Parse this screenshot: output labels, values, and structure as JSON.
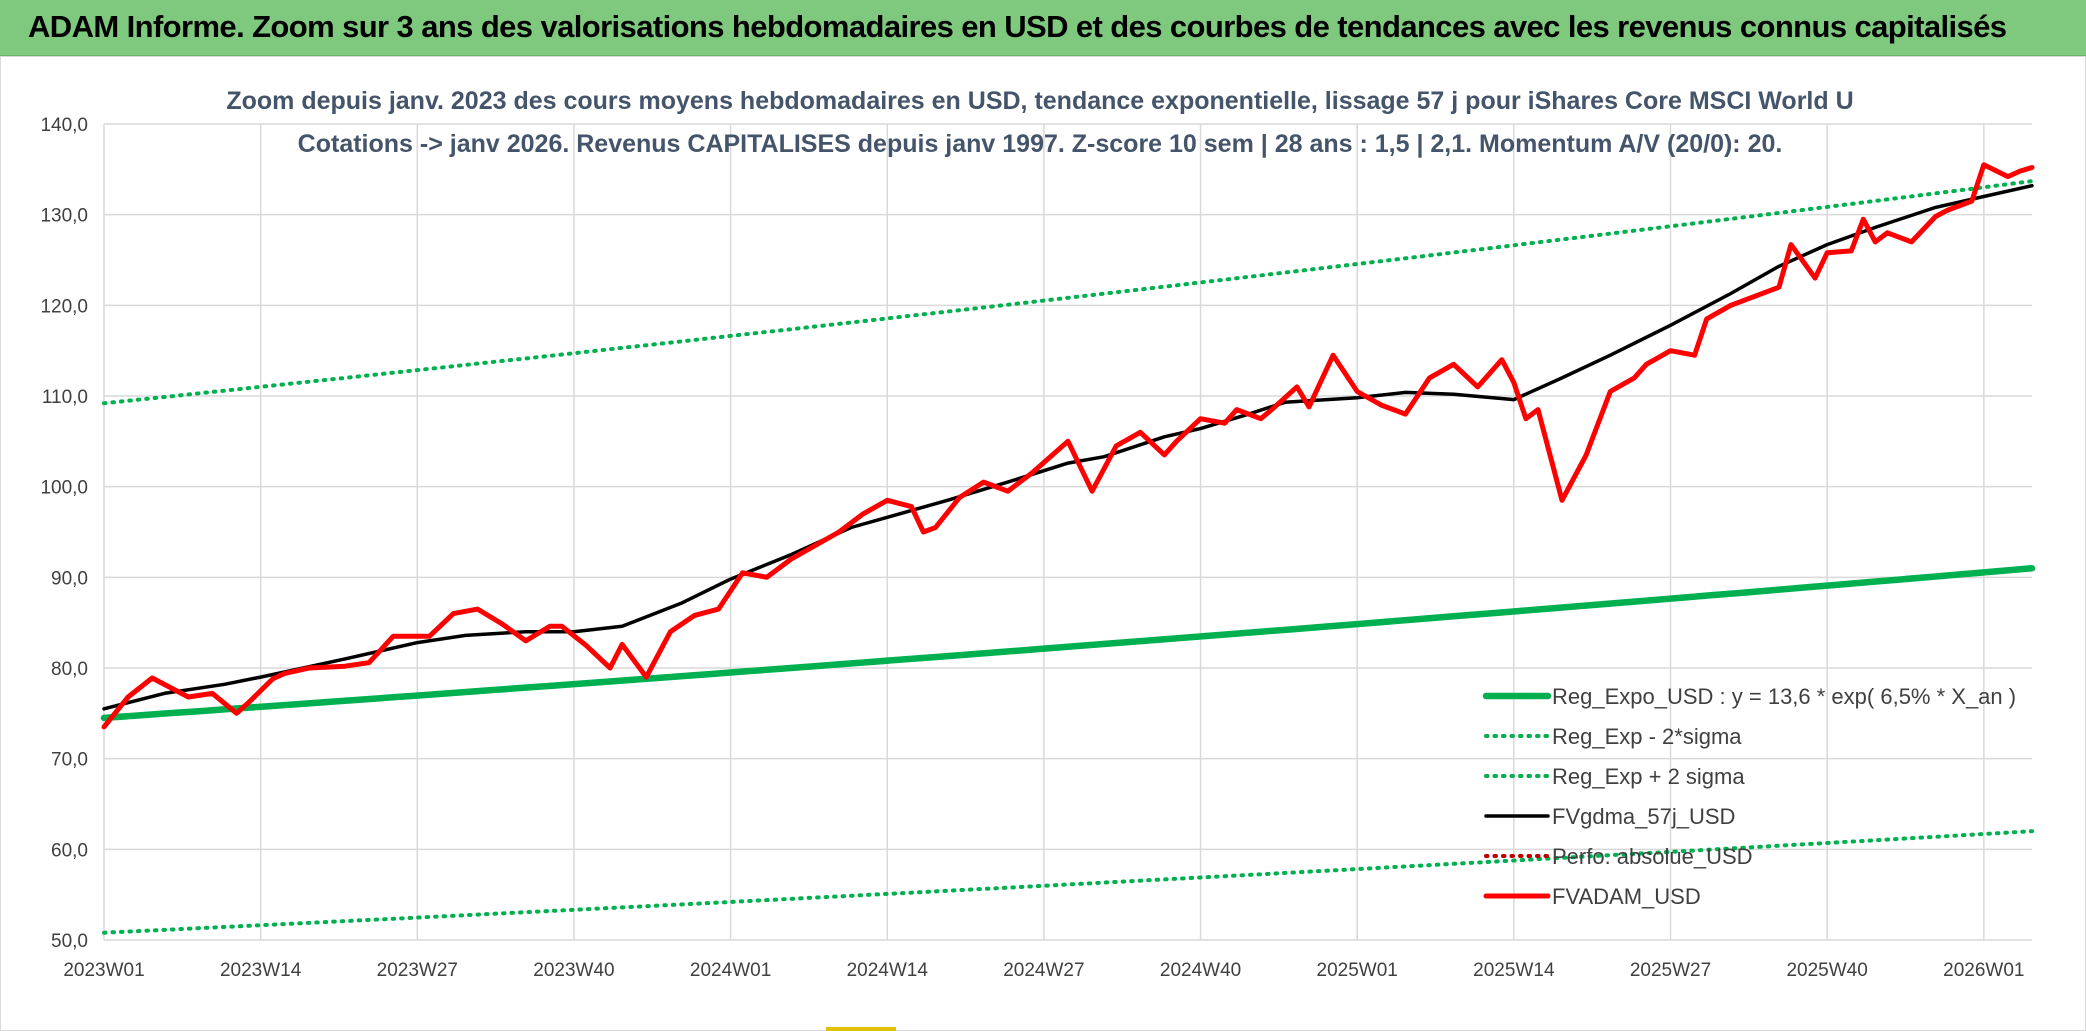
{
  "header": {
    "title": "ADAM Informe. Zoom sur 3 ans des valorisations hebdomadaires en USD et des courbes de tendances avec les revenus connus capitalisés"
  },
  "colors": {
    "header_bg": "#7fc97f",
    "regression": "#00b050",
    "moving_average": "#000000",
    "fvadam": "#ff0000",
    "perfo_absolue": "#c00000",
    "title_text": "#44546a",
    "grid": "#d9d9d9"
  },
  "chart_data": {
    "type": "line",
    "title_lines": [
      "Zoom depuis janv. 2023 des cours moyens hebdomadaires en USD, tendance exponentielle, lissage 57 j pour iShares Core MSCI World U",
      "Cotations -> janv 2026. Revenus CAPITALISES depuis janv 1997. Z-score 10 sem | 28 ans : 1,5 | 2,1. Momentum A/V (20/0): 20."
    ],
    "xlabel": "",
    "ylabel": "",
    "ylim": [
      50,
      140
    ],
    "y_ticks": [
      "50,0",
      "60,0",
      "70,0",
      "80,0",
      "90,0",
      "100,0",
      "110,0",
      "120,0",
      "130,0",
      "140,0"
    ],
    "x_tick_labels": [
      "2023W01",
      "2023W14",
      "2023W27",
      "2023W40",
      "2024W01",
      "2024W14",
      "2024W27",
      "2024W40",
      "2025W01",
      "2025W14",
      "2025W27",
      "2025W40",
      "2026W01"
    ],
    "x_tick_index": [
      0,
      13,
      26,
      39,
      52,
      65,
      78,
      91,
      104,
      117,
      130,
      143,
      156
    ],
    "x_max_index": 160,
    "grid": true,
    "legend_position": "bottom-right",
    "series": [
      {
        "name": "Reg_Expo_USD : y = 13,6 * exp( 6,5% *  X_an )",
        "style": "solid-thick",
        "color": "#00b050",
        "x": [
          0,
          160
        ],
        "values": [
          74.5,
          91.0
        ],
        "interpolation": "exponential"
      },
      {
        "name": "Reg_Exp - 2*sigma",
        "style": "dotted",
        "color": "#00b050",
        "x": [
          0,
          160
        ],
        "values": [
          50.8,
          62.0
        ],
        "interpolation": "exponential"
      },
      {
        "name": "Reg_Exp + 2 sigma",
        "style": "dotted",
        "color": "#00b050",
        "x": [
          0,
          160
        ],
        "values": [
          109.2,
          133.7
        ],
        "interpolation": "exponential"
      },
      {
        "name": "FVgdma_57j_USD",
        "style": "solid",
        "color": "#000000",
        "x": [
          0,
          5,
          10,
          13,
          20,
          26,
          30,
          35,
          39,
          43,
          48,
          52,
          57,
          62,
          66,
          70,
          75,
          80,
          83,
          88,
          91,
          95,
          98,
          104,
          108,
          112,
          117,
          121,
          125,
          130,
          135,
          139,
          143,
          147,
          152,
          156,
          160
        ],
        "values": [
          75.5,
          77.2,
          78.2,
          79.0,
          81.0,
          82.8,
          83.6,
          84.0,
          84.0,
          84.6,
          87.2,
          89.8,
          92.5,
          95.5,
          97.0,
          98.5,
          100.5,
          102.6,
          103.3,
          105.5,
          106.4,
          108.0,
          109.3,
          109.8,
          110.4,
          110.2,
          109.6,
          112.0,
          114.5,
          117.8,
          121.3,
          124.3,
          126.7,
          128.6,
          130.8,
          132.0,
          133.2
        ]
      },
      {
        "name": "Perfo. absolue_USD",
        "style": "dotted",
        "color": "#c00000",
        "x": [],
        "values": []
      },
      {
        "name": "FVADAM_USD",
        "style": "solid-thick",
        "color": "#ff0000",
        "x": [
          0,
          2,
          4,
          7,
          9,
          11,
          12,
          14,
          15,
          17,
          20,
          22,
          24,
          27,
          29,
          31,
          33,
          35,
          37,
          38,
          40,
          42,
          43,
          45,
          47,
          49,
          51,
          53,
          55,
          57,
          59,
          61,
          63,
          65,
          67,
          68,
          69,
          71,
          73,
          75,
          77,
          80,
          82,
          84,
          86,
          88,
          89,
          91,
          93,
          94,
          96,
          97,
          99,
          100,
          102,
          104,
          106,
          108,
          109,
          110,
          112,
          114,
          116,
          117,
          118,
          119,
          121,
          123,
          125,
          127,
          128,
          130,
          132,
          133,
          135,
          137,
          139,
          140,
          142,
          143,
          145,
          146,
          147,
          148,
          150,
          152,
          153,
          155,
          156,
          158,
          159,
          160
        ],
        "values": [
          73.5,
          76.8,
          78.9,
          76.8,
          77.2,
          75.0,
          76.2,
          78.8,
          79.4,
          80.0,
          80.2,
          80.6,
          83.5,
          83.5,
          86.0,
          86.5,
          84.9,
          83.0,
          84.6,
          84.6,
          82.5,
          80.0,
          82.6,
          79.0,
          84.0,
          85.8,
          86.5,
          90.5,
          90.0,
          92.0,
          93.5,
          95.0,
          97.0,
          98.5,
          97.8,
          95.0,
          95.5,
          98.8,
          100.5,
          99.5,
          101.5,
          105.0,
          99.5,
          104.5,
          106.0,
          103.5,
          105.0,
          107.5,
          107.0,
          108.5,
          107.5,
          108.6,
          111.0,
          108.8,
          114.5,
          110.5,
          109.0,
          108.0,
          110.0,
          112.0,
          113.5,
          111.0,
          114.0,
          111.5,
          107.5,
          108.5,
          98.5,
          103.5,
          110.5,
          112.0,
          113.5,
          115.0,
          114.5,
          118.5,
          120.0,
          121.0,
          122.0,
          126.7,
          123.0,
          125.8,
          126.0,
          129.5,
          127.0,
          128.0,
          127.0,
          129.8,
          130.5,
          131.5,
          135.5,
          134.2,
          134.8,
          135.2
        ]
      }
    ]
  }
}
